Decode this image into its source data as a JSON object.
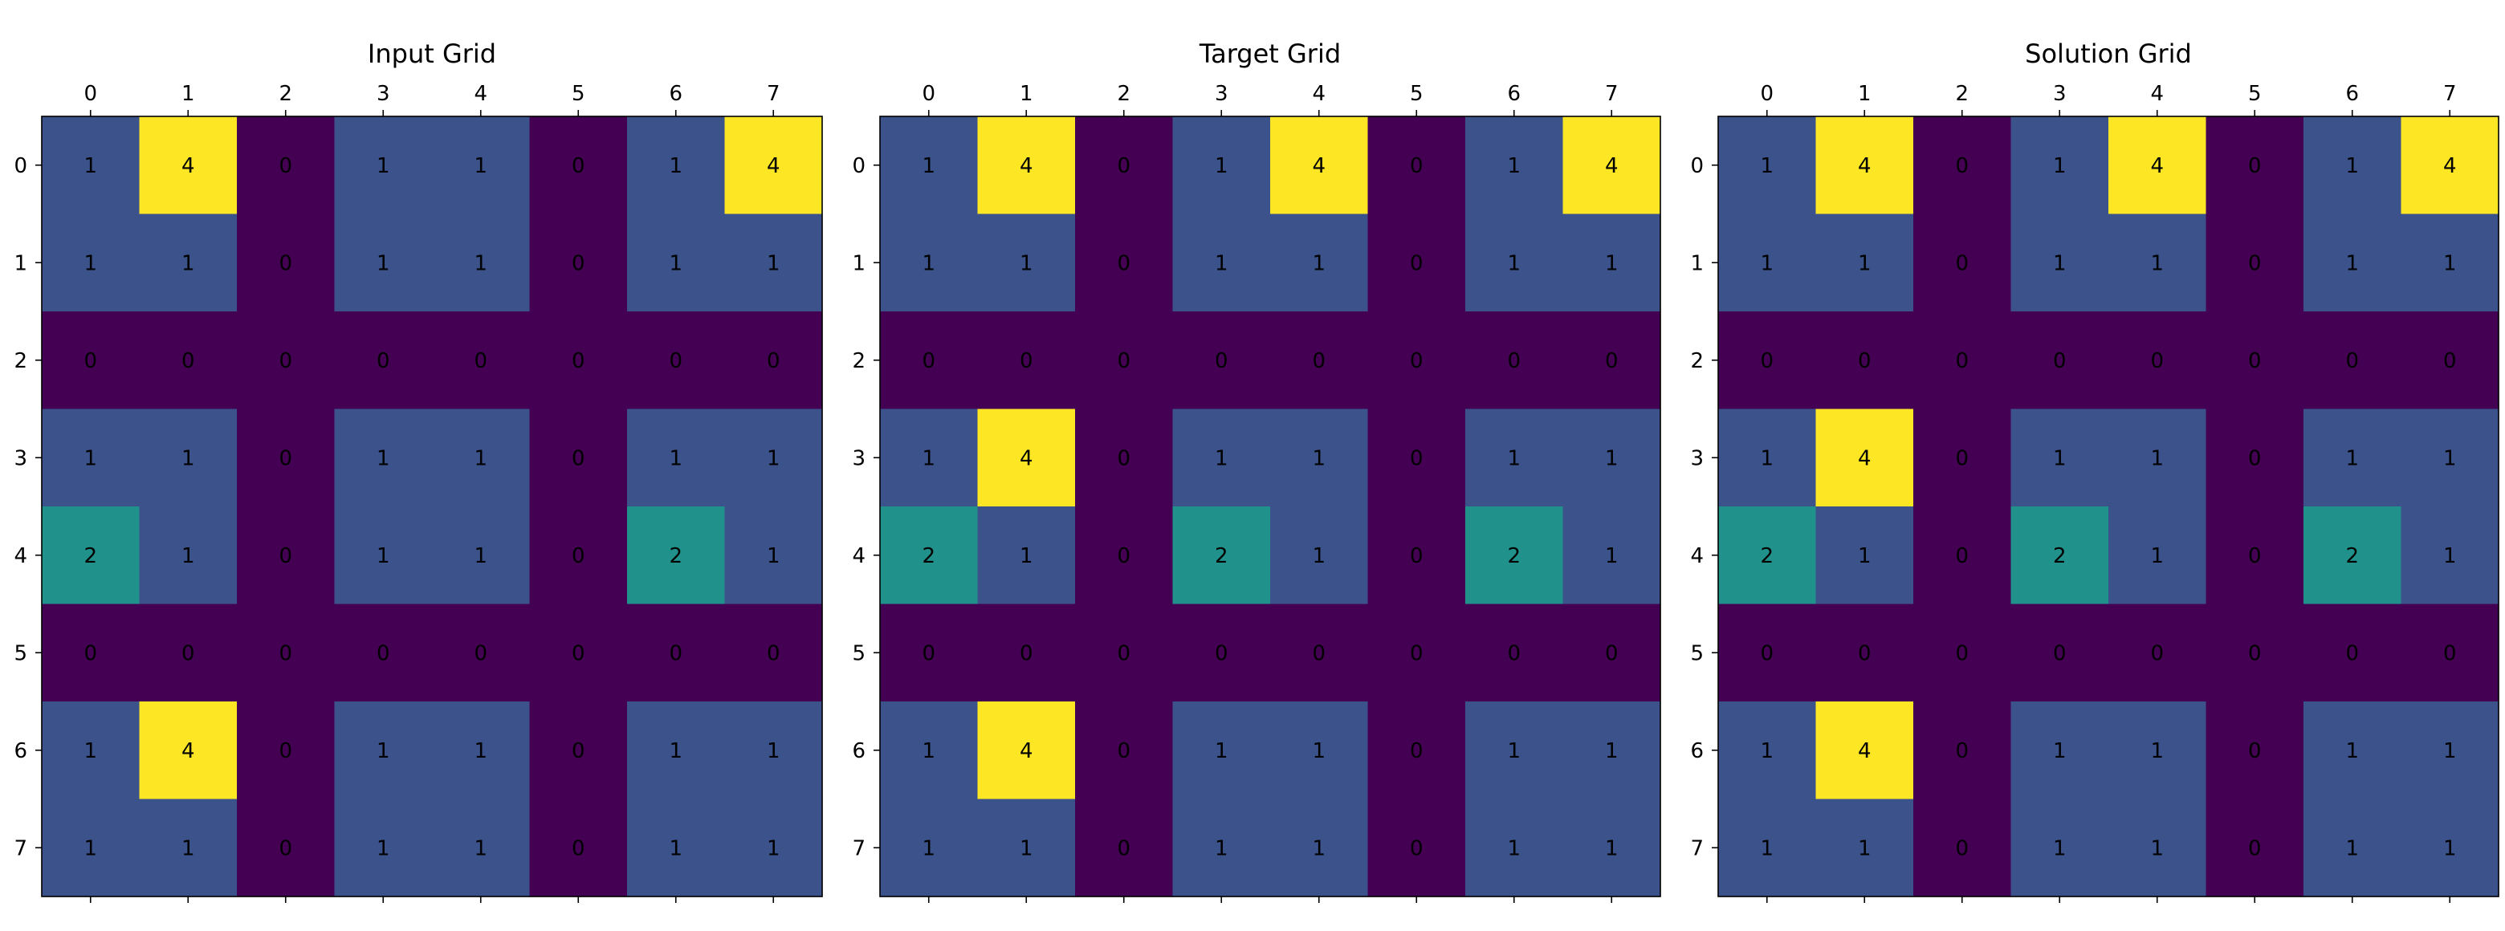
{
  "chart_data": [
    {
      "type": "heatmap",
      "title": "Input Grid",
      "x_ticks": [
        "0",
        "1",
        "2",
        "3",
        "4",
        "5",
        "6",
        "7"
      ],
      "y_ticks": [
        "0",
        "1",
        "2",
        "3",
        "4",
        "5",
        "6",
        "7"
      ],
      "grid": false,
      "colormap": "viridis",
      "value_range": [
        0,
        4
      ],
      "values": [
        [
          1,
          4,
          0,
          1,
          1,
          0,
          1,
          4
        ],
        [
          1,
          1,
          0,
          1,
          1,
          0,
          1,
          1
        ],
        [
          0,
          0,
          0,
          0,
          0,
          0,
          0,
          0
        ],
        [
          1,
          1,
          0,
          1,
          1,
          0,
          1,
          1
        ],
        [
          2,
          1,
          0,
          1,
          1,
          0,
          2,
          1
        ],
        [
          0,
          0,
          0,
          0,
          0,
          0,
          0,
          0
        ],
        [
          1,
          4,
          0,
          1,
          1,
          0,
          1,
          1
        ],
        [
          1,
          1,
          0,
          1,
          1,
          0,
          1,
          1
        ]
      ]
    },
    {
      "type": "heatmap",
      "title": "Target Grid",
      "x_ticks": [
        "0",
        "1",
        "2",
        "3",
        "4",
        "5",
        "6",
        "7"
      ],
      "y_ticks": [
        "0",
        "1",
        "2",
        "3",
        "4",
        "5",
        "6",
        "7"
      ],
      "grid": false,
      "colormap": "viridis",
      "value_range": [
        0,
        4
      ],
      "values": [
        [
          1,
          4,
          0,
          1,
          4,
          0,
          1,
          4
        ],
        [
          1,
          1,
          0,
          1,
          1,
          0,
          1,
          1
        ],
        [
          0,
          0,
          0,
          0,
          0,
          0,
          0,
          0
        ],
        [
          1,
          4,
          0,
          1,
          1,
          0,
          1,
          1
        ],
        [
          2,
          1,
          0,
          2,
          1,
          0,
          2,
          1
        ],
        [
          0,
          0,
          0,
          0,
          0,
          0,
          0,
          0
        ],
        [
          1,
          4,
          0,
          1,
          1,
          0,
          1,
          1
        ],
        [
          1,
          1,
          0,
          1,
          1,
          0,
          1,
          1
        ]
      ]
    },
    {
      "type": "heatmap",
      "title": "Solution Grid",
      "x_ticks": [
        "0",
        "1",
        "2",
        "3",
        "4",
        "5",
        "6",
        "7"
      ],
      "y_ticks": [
        "0",
        "1",
        "2",
        "3",
        "4",
        "5",
        "6",
        "7"
      ],
      "grid": false,
      "colormap": "viridis",
      "value_range": [
        0,
        4
      ],
      "values": [
        [
          1,
          4,
          0,
          1,
          4,
          0,
          1,
          4
        ],
        [
          1,
          1,
          0,
          1,
          1,
          0,
          1,
          1
        ],
        [
          0,
          0,
          0,
          0,
          0,
          0,
          0,
          0
        ],
        [
          1,
          4,
          0,
          1,
          1,
          0,
          1,
          1
        ],
        [
          2,
          1,
          0,
          2,
          1,
          0,
          2,
          1
        ],
        [
          0,
          0,
          0,
          0,
          0,
          0,
          0,
          0
        ],
        [
          1,
          4,
          0,
          1,
          1,
          0,
          1,
          1
        ],
        [
          1,
          1,
          0,
          1,
          1,
          0,
          1,
          1
        ]
      ]
    }
  ],
  "colors": {
    "0": "#440154",
    "1": "#3b528b",
    "2": "#21918c",
    "4": "#fde725",
    "axis": "#000000",
    "background": "#ffffff"
  }
}
